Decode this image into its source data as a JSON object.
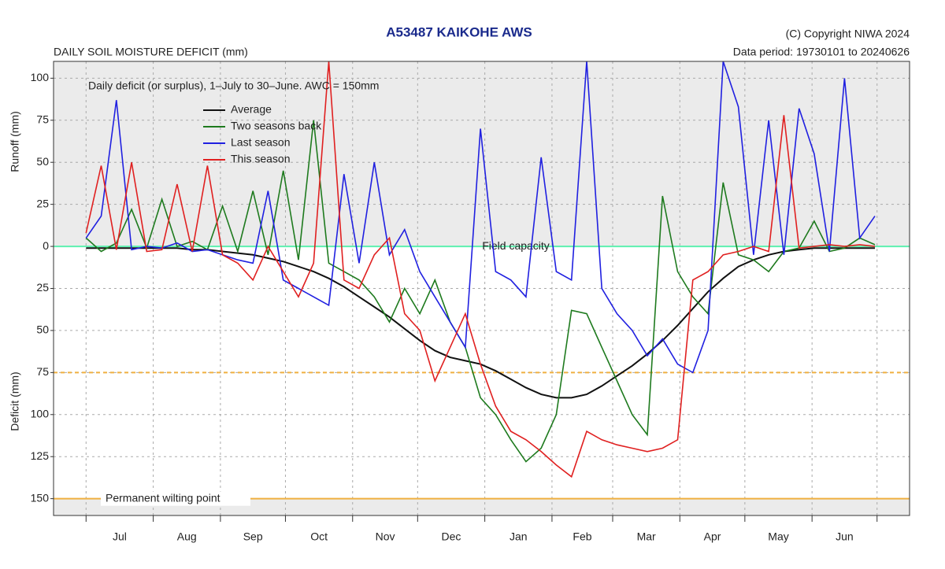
{
  "chart_data": {
    "type": "line",
    "title": "A53487  KAIKOHE AWS",
    "subtitle": "DAILY SOIL MOISTURE DEFICIT (mm)",
    "copyright": "(C) Copyright NIWA  2024",
    "data_period": "Data period:  19730101  to  20240626",
    "annotation": "Daily deficit (or surplus), 1–July to 30–June.  AWC = 150mm",
    "ylabel_top": "Runoff (mm)",
    "ylabel_bottom": "Deficit (mm)",
    "xlim": [
      -15,
      380
    ],
    "ylim": [
      -160,
      110
    ],
    "xticks": [
      0,
      31,
      62,
      92,
      123,
      153,
      184,
      215,
      243,
      274,
      304,
      335,
      365
    ],
    "xtick_labels": [
      "Jul",
      "Aug",
      "Sep",
      "Oct",
      "Nov",
      "Dec",
      "Jan",
      "Feb",
      "Mar",
      "Apr",
      "May",
      "Jun"
    ],
    "yticks": [
      100,
      75,
      50,
      25,
      0,
      {
        "value": -25,
        "label": "25"
      },
      {
        "value": -50,
        "label": "50"
      },
      {
        "value": -75,
        "label": "75"
      },
      {
        "value": -100,
        "label": "100"
      },
      {
        "value": -125,
        "label": "125"
      },
      {
        "value": -150,
        "label": "150"
      }
    ],
    "grid": true,
    "legend": "upper left",
    "reference_lines": [
      {
        "value": 0,
        "label": "Field capacity",
        "color": "#5ef0b0"
      },
      {
        "value": -75,
        "color": "#f0b040",
        "dashed": true
      },
      {
        "value": -150,
        "label": "Permanent wilting point",
        "color": "#f0b040"
      }
    ],
    "x": [
      0,
      7,
      14,
      21,
      28,
      35,
      42,
      49,
      56,
      63,
      70,
      77,
      84,
      91,
      98,
      105,
      112,
      119,
      126,
      133,
      140,
      147,
      154,
      161,
      168,
      175,
      182,
      189,
      196,
      203,
      210,
      217,
      224,
      231,
      238,
      245,
      252,
      259,
      266,
      273,
      280,
      287,
      294,
      301,
      308,
      315,
      322,
      329,
      336,
      343,
      350,
      357,
      364
    ],
    "series": [
      {
        "name": "Average",
        "color": "#111111",
        "values": [
          -1,
          -1,
          -1,
          -1,
          -1,
          -1,
          -1,
          -2,
          -2,
          -3,
          -4,
          -5,
          -7,
          -9,
          -12,
          -15,
          -19,
          -24,
          -30,
          -36,
          -42,
          -49,
          -56,
          -62,
          -66,
          -68,
          -70,
          -74,
          -79,
          -84,
          -88,
          -90,
          -90,
          -88,
          -83,
          -77,
          -71,
          -64,
          -56,
          -47,
          -37,
          -27,
          -19,
          -12,
          -8,
          -5,
          -3,
          -2,
          -1,
          -1,
          -1,
          -1,
          -1
        ]
      },
      {
        "name": "Two seasons back",
        "color": "#1e7a1e",
        "values": [
          5,
          -3,
          2,
          22,
          -1,
          28,
          0,
          3,
          -2,
          24,
          -3,
          33,
          -5,
          45,
          -8,
          75,
          -10,
          -15,
          -20,
          -30,
          -45,
          -25,
          -40,
          -20,
          -45,
          -60,
          -90,
          -100,
          -115,
          -128,
          -120,
          -100,
          -38,
          -40,
          -60,
          -80,
          -100,
          -112,
          30,
          -15,
          -30,
          -40,
          38,
          -5,
          -8,
          -15,
          -3,
          -1,
          15,
          -3,
          -1,
          5,
          1
        ]
      },
      {
        "name": "Last season",
        "color": "#2020e0",
        "values": [
          5,
          18,
          87,
          -2,
          0,
          -1,
          2,
          -3,
          -2,
          -5,
          -8,
          -10,
          33,
          -20,
          -25,
          -30,
          -35,
          43,
          -10,
          50,
          -5,
          10,
          -15,
          -30,
          -45,
          -60,
          70,
          -15,
          -20,
          -30,
          53,
          -15,
          -20,
          110,
          -25,
          -40,
          -50,
          -65,
          -55,
          -70,
          -75,
          -50,
          110,
          83,
          -5,
          75,
          -5,
          82,
          55,
          -3,
          100,
          5,
          18
        ]
      },
      {
        "name": "This season",
        "color": "#e02020",
        "values": [
          8,
          48,
          -2,
          50,
          -3,
          -2,
          37,
          -3,
          48,
          -5,
          -10,
          -20,
          0,
          -15,
          -30,
          -10,
          110,
          -20,
          -25,
          -5,
          5,
          -40,
          -50,
          -80,
          -60,
          -40,
          -70,
          -95,
          -110,
          -115,
          -122,
          -130,
          -137,
          -110,
          -115,
          -118,
          -120,
          -122,
          -120,
          -115,
          -20,
          -15,
          -5,
          -3,
          0,
          -3,
          78,
          -1,
          0,
          1,
          0,
          1,
          0
        ]
      }
    ]
  }
}
